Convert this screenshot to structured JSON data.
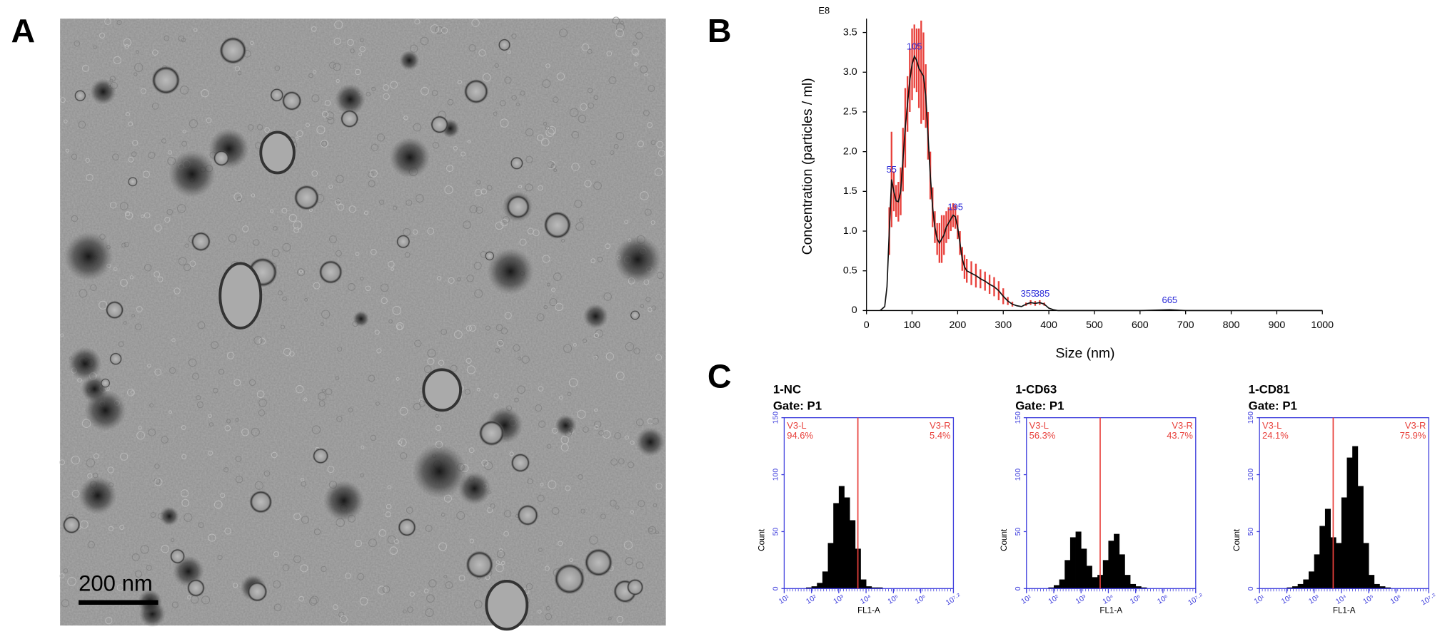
{
  "panel_a": {
    "label": "A",
    "scale_bar": "200 nm"
  },
  "chart_data": [
    {
      "type": "line",
      "panel_label": "B",
      "exponent_label": "E8",
      "x_label": "Size (nm)",
      "y_label": "Concentration (particles / ml)",
      "x": [
        30,
        40,
        45,
        50,
        55,
        60,
        65,
        70,
        75,
        80,
        85,
        90,
        95,
        100,
        105,
        110,
        115,
        120,
        125,
        130,
        135,
        140,
        145,
        150,
        155,
        160,
        165,
        170,
        175,
        180,
        185,
        190,
        195,
        200,
        205,
        210,
        215,
        220,
        230,
        240,
        250,
        260,
        270,
        280,
        290,
        300,
        310,
        320,
        330,
        340,
        350,
        360,
        370,
        380,
        390,
        400,
        410,
        420,
        500,
        600,
        665,
        700,
        800,
        1000
      ],
      "series": [
        {
          "color": "#111111",
          "error_color": "#e8413c",
          "values": [
            0,
            0.05,
            0.3,
            1.0,
            1.65,
            1.5,
            1.38,
            1.37,
            1.5,
            1.9,
            2.3,
            2.6,
            2.9,
            3.1,
            3.2,
            3.15,
            3.05,
            3.0,
            2.95,
            2.7,
            2.2,
            1.7,
            1.3,
            1.05,
            0.9,
            0.85,
            0.9,
            0.95,
            1.05,
            1.1,
            1.15,
            1.2,
            1.18,
            1.05,
            0.85,
            0.65,
            0.55,
            0.5,
            0.47,
            0.44,
            0.4,
            0.37,
            0.33,
            0.3,
            0.25,
            0.18,
            0.12,
            0.08,
            0.06,
            0.05,
            0.08,
            0.1,
            0.09,
            0.1,
            0.08,
            0.03,
            0.01,
            0,
            0,
            0,
            0.01,
            0,
            0,
            0
          ],
          "errors": [
            null,
            null,
            null,
            0.3,
            0.6,
            0.25,
            0.2,
            0.25,
            0.3,
            0.4,
            0.5,
            0.35,
            0.4,
            0.45,
            0.4,
            0.4,
            0.5,
            0.65,
            0.55,
            0.4,
            0.3,
            0.3,
            0.25,
            0.2,
            0.2,
            0.25,
            0.3,
            0.25,
            0.2,
            0.2,
            0.15,
            0.15,
            0.15,
            0.15,
            0.15,
            0.15,
            0.15,
            0.15,
            0.15,
            0.15,
            0.12,
            0.12,
            0.12,
            0.12,
            0.12,
            0.1,
            0.05,
            0.03,
            null,
            null,
            0.02,
            0.03,
            0.03,
            0.03,
            0.02,
            null,
            null,
            null,
            null,
            null,
            null,
            null,
            null,
            null
          ]
        }
      ],
      "peak_labels": [
        55,
        105,
        195,
        355,
        385,
        665
      ],
      "peak_color": "#2a2ad8",
      "xlim": [
        0,
        1000
      ],
      "xticks": [
        0,
        100,
        200,
        300,
        400,
        500,
        600,
        700,
        800,
        900,
        1000
      ],
      "ylim": [
        0,
        3.5
      ],
      "yticks": [
        0,
        0.5,
        {
          "value": 1,
          "label": "1.0"
        },
        1.5,
        {
          "value": 2,
          "label": "2.0"
        },
        2.5,
        {
          "value": 3,
          "label": "3.0"
        },
        3.5
      ]
    },
    {
      "type": "histogram",
      "panel_label": "C",
      "title": "1-NC",
      "gate": "Gate: P1",
      "x_label": "FL1-A",
      "y_label": "Count",
      "bins": [
        1.0,
        1.2,
        1.4,
        1.6,
        1.8,
        2.0,
        2.2,
        2.4,
        2.6,
        2.8,
        3.0,
        3.2,
        3.4,
        3.6,
        3.8,
        4.0,
        4.2,
        4.4,
        4.6,
        4.8,
        5.0,
        5.2,
        5.4,
        5.6,
        5.8,
        6.0,
        6.2,
        6.4,
        6.6,
        6.8,
        7.0,
        7.2
      ],
      "values": [
        0,
        0,
        0,
        0,
        1,
        2,
        5,
        15,
        40,
        75,
        90,
        80,
        60,
        35,
        8,
        2,
        1,
        1,
        0,
        0,
        0,
        0,
        0,
        0,
        0,
        0,
        0,
        0,
        0,
        0,
        0
      ],
      "color": "#000000",
      "axis_color": "#3b3bdc",
      "marker_color": "#e8413c",
      "marker": 3.7,
      "regions": [
        {
          "name": "V3-L",
          "percent": "94.6%"
        },
        {
          "name": "V3-R",
          "percent": "5.4%"
        }
      ],
      "xlim": [
        1,
        7.2
      ],
      "xticks": [
        {
          "value": 1,
          "label": "10¹"
        },
        {
          "value": 2,
          "label": "10²"
        },
        {
          "value": 3,
          "label": "10³"
        },
        {
          "value": 4,
          "label": "10⁴"
        },
        {
          "value": 5,
          "label": "10⁵"
        },
        {
          "value": 6,
          "label": "10⁶"
        },
        {
          "value": 7.2,
          "label": "10⁷·²"
        }
      ],
      "ylim": [
        0,
        150
      ],
      "yticks": [
        0,
        50,
        100,
        150
      ]
    },
    {
      "type": "histogram",
      "title": "1-CD63",
      "gate": "Gate: P1",
      "x_label": "FL1-A",
      "y_label": "Count",
      "bins": [
        1.0,
        1.2,
        1.4,
        1.6,
        1.8,
        2.0,
        2.2,
        2.4,
        2.6,
        2.8,
        3.0,
        3.2,
        3.4,
        3.6,
        3.8,
        4.0,
        4.2,
        4.4,
        4.6,
        4.8,
        5.0,
        5.2,
        5.4,
        5.6,
        5.8,
        6.0,
        6.2,
        6.4,
        6.6,
        6.8,
        7.0,
        7.2
      ],
      "values": [
        0,
        0,
        0,
        0,
        1,
        3,
        8,
        25,
        45,
        50,
        35,
        20,
        10,
        12,
        25,
        42,
        48,
        30,
        12,
        4,
        2,
        1,
        0,
        0,
        0,
        0,
        0,
        0,
        0,
        0,
        0
      ],
      "color": "#000000",
      "axis_color": "#3b3bdc",
      "marker_color": "#e8413c",
      "marker": 3.7,
      "regions": [
        {
          "name": "V3-L",
          "percent": "56.3%"
        },
        {
          "name": "V3-R",
          "percent": "43.7%"
        }
      ],
      "xlim": [
        1,
        7.2
      ],
      "xticks": [
        {
          "value": 1,
          "label": "10¹"
        },
        {
          "value": 2,
          "label": "10²"
        },
        {
          "value": 3,
          "label": "10³"
        },
        {
          "value": 4,
          "label": "10⁴"
        },
        {
          "value": 5,
          "label": "10⁵"
        },
        {
          "value": 6,
          "label": "10⁶"
        },
        {
          "value": 7.2,
          "label": "10⁷·²"
        }
      ],
      "ylim": [
        0,
        150
      ],
      "yticks": [
        0,
        50,
        100,
        150
      ]
    },
    {
      "type": "histogram",
      "title": "1-CD81",
      "gate": "Gate: P1",
      "x_label": "FL1-A",
      "y_label": "Count",
      "bins": [
        1.0,
        1.2,
        1.4,
        1.6,
        1.8,
        2.0,
        2.2,
        2.4,
        2.6,
        2.8,
        3.0,
        3.2,
        3.4,
        3.6,
        3.8,
        4.0,
        4.2,
        4.4,
        4.6,
        4.8,
        5.0,
        5.2,
        5.4,
        5.6,
        5.8,
        6.0,
        6.2,
        6.4,
        6.6,
        6.8,
        7.0,
        7.2
      ],
      "values": [
        0,
        0,
        0,
        0,
        0,
        1,
        2,
        4,
        8,
        15,
        30,
        55,
        70,
        45,
        40,
        80,
        115,
        125,
        90,
        40,
        12,
        4,
        2,
        1,
        0,
        0,
        0,
        0,
        0,
        0,
        0
      ],
      "color": "#000000",
      "axis_color": "#3b3bdc",
      "marker_color": "#e8413c",
      "marker": 3.7,
      "regions": [
        {
          "name": "V3-L",
          "percent": "24.1%"
        },
        {
          "name": "V3-R",
          "percent": "75.9%"
        }
      ],
      "xlim": [
        1,
        7.2
      ],
      "xticks": [
        {
          "value": 1,
          "label": "10¹"
        },
        {
          "value": 2,
          "label": "10²"
        },
        {
          "value": 3,
          "label": "10³"
        },
        {
          "value": 4,
          "label": "10⁴"
        },
        {
          "value": 5,
          "label": "10⁵"
        },
        {
          "value": 6,
          "label": "10⁶"
        },
        {
          "value": 7.2,
          "label": "10⁷·²"
        }
      ],
      "ylim": [
        0,
        150
      ],
      "yticks": [
        0,
        50,
        100,
        150
      ]
    }
  ]
}
